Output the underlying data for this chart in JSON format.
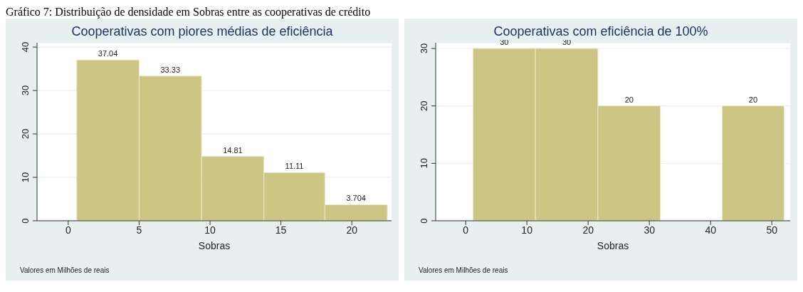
{
  "chart_data": [
    {
      "type": "histogram",
      "title": "Cooperativas com piores médias de eficiência",
      "xlabel": "Sobras",
      "annotations": [
        "Gráfico 7: Distribuição de densidade em Sobras entre as cooperativas de crédito",
        "Valores em Milhões de reais"
      ],
      "bins": [
        0.6,
        5.0,
        9.4,
        13.8,
        18.1,
        22.5
      ],
      "values": [
        37.04,
        33.33,
        14.81,
        11.11,
        3.704
      ],
      "color": "#cdc583",
      "data_labels": true,
      "xlim": [
        -2.2,
        22.8
      ],
      "xticks": [
        0,
        5,
        10,
        15,
        20
      ],
      "ylim": [
        0,
        41
      ],
      "yticks": [
        0,
        10,
        20,
        30,
        40
      ],
      "grid": "y"
    },
    {
      "type": "histogram",
      "title": "Cooperativas com eficiência de 100%",
      "xlabel": "Sobras",
      "annotations": [
        "Valores em Milhões de reais"
      ],
      "bins": [
        1.2,
        11.4,
        21.6,
        31.8,
        41.9,
        52.0
      ],
      "values": [
        30,
        30,
        20,
        0,
        20
      ],
      "color": "#cdc583",
      "value_labels": [
        "30",
        "30",
        "20",
        null,
        "20"
      ],
      "xlim": [
        -4.9,
        53
      ],
      "xticks": [
        0,
        10,
        20,
        30,
        40,
        50
      ],
      "ylim": [
        0,
        31
      ],
      "yticks": [
        0,
        10,
        20,
        30
      ],
      "grid": "y"
    }
  ]
}
